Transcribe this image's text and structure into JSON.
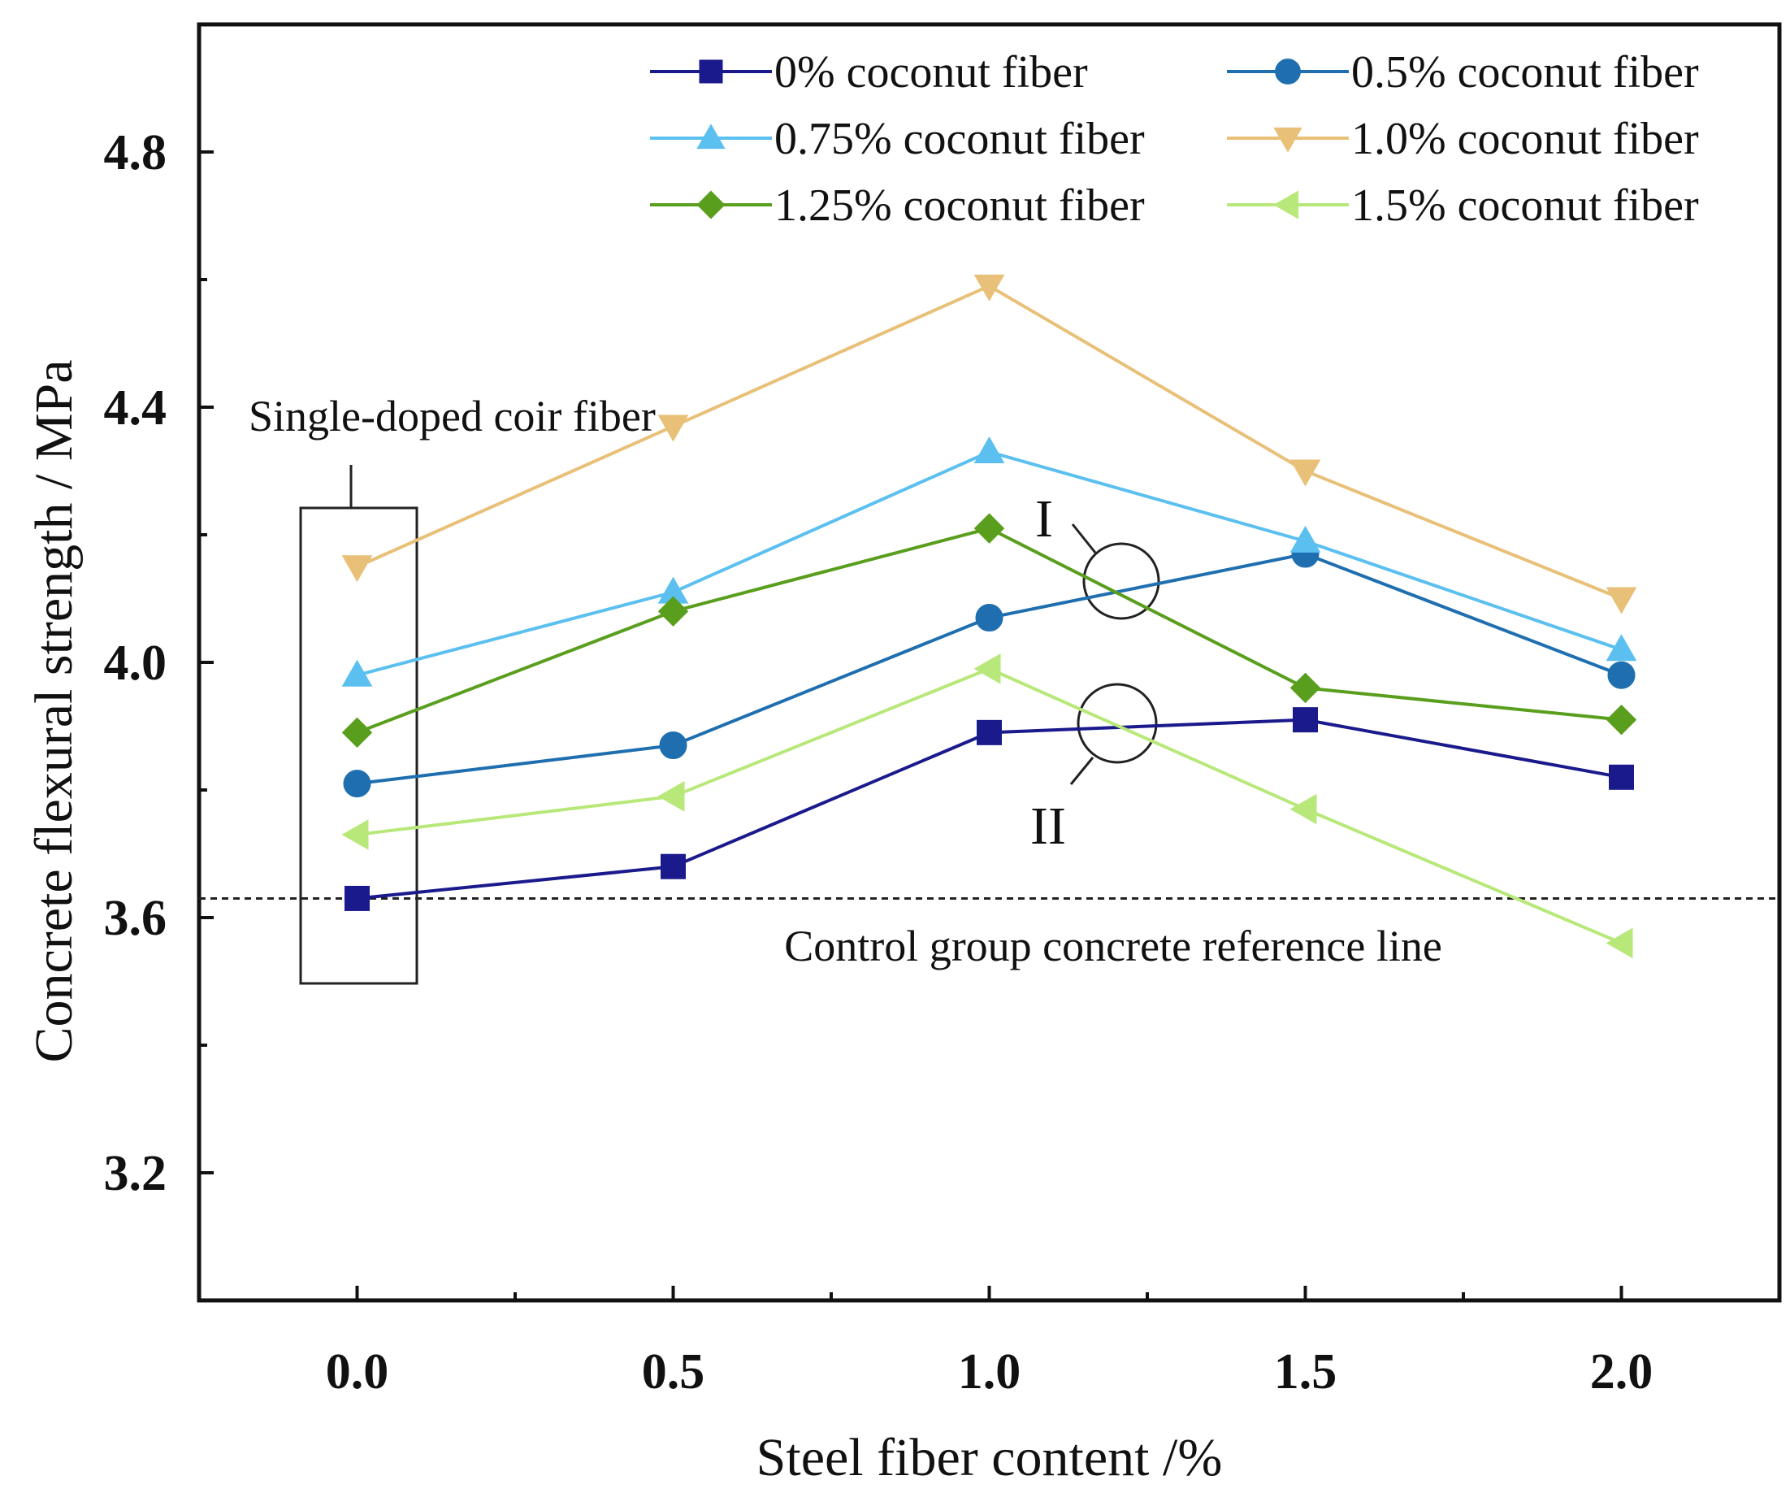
{
  "chart_data": {
    "type": "line",
    "xlabel": "Steel fiber content /%",
    "ylabel": "Concrete flexural strength / MPa",
    "xlim": [
      -0.25,
      2.25
    ],
    "ylim": [
      3.0,
      5.0
    ],
    "x_ticks": [
      0.0,
      0.5,
      1.0,
      1.5,
      2.0
    ],
    "x_tick_labels": [
      "0.0",
      "0.5",
      "1.0",
      "1.5",
      "2.0"
    ],
    "y_ticks": [
      3.2,
      3.6,
      4.0,
      4.4,
      4.8
    ],
    "y_tick_labels": [
      "3.2",
      "3.6",
      "4.0",
      "4.4",
      "4.8"
    ],
    "grid": false,
    "legend_position": "top-right",
    "x": [
      0.0,
      0.5,
      1.0,
      1.5,
      2.0
    ],
    "series": [
      {
        "name": "0% coconut fiber",
        "values": [
          3.63,
          3.68,
          3.89,
          3.91,
          3.82
        ],
        "color": "#1a1a8c",
        "marker": "square"
      },
      {
        "name": "0.5% coconut fiber",
        "values": [
          3.81,
          3.87,
          4.07,
          4.17,
          3.98
        ],
        "color": "#1f6fb0",
        "marker": "circle"
      },
      {
        "name": "0.75% coconut fiber",
        "values": [
          3.98,
          4.11,
          4.33,
          4.19,
          4.02
        ],
        "color": "#5bc0f0",
        "marker": "triangle-up"
      },
      {
        "name": "1.0% coconut fiber",
        "values": [
          4.15,
          4.37,
          4.59,
          4.3,
          4.1
        ],
        "color": "#e8c078",
        "marker": "triangle-down"
      },
      {
        "name": "1.25% coconut fiber",
        "values": [
          3.89,
          4.08,
          4.21,
          3.96,
          3.91
        ],
        "color": "#5a9e1e",
        "marker": "diamond"
      },
      {
        "name": "1.5% coconut fiber",
        "values": [
          3.73,
          3.79,
          3.99,
          3.77,
          3.56
        ],
        "color": "#b8e87a",
        "marker": "triangle-left"
      }
    ],
    "reference_line": {
      "y": 3.63,
      "label": "Control group concrete reference line"
    },
    "annotations": {
      "box_label": "Single-doped coir fiber",
      "circle_1_label": "I",
      "circle_2_label": "II"
    }
  }
}
